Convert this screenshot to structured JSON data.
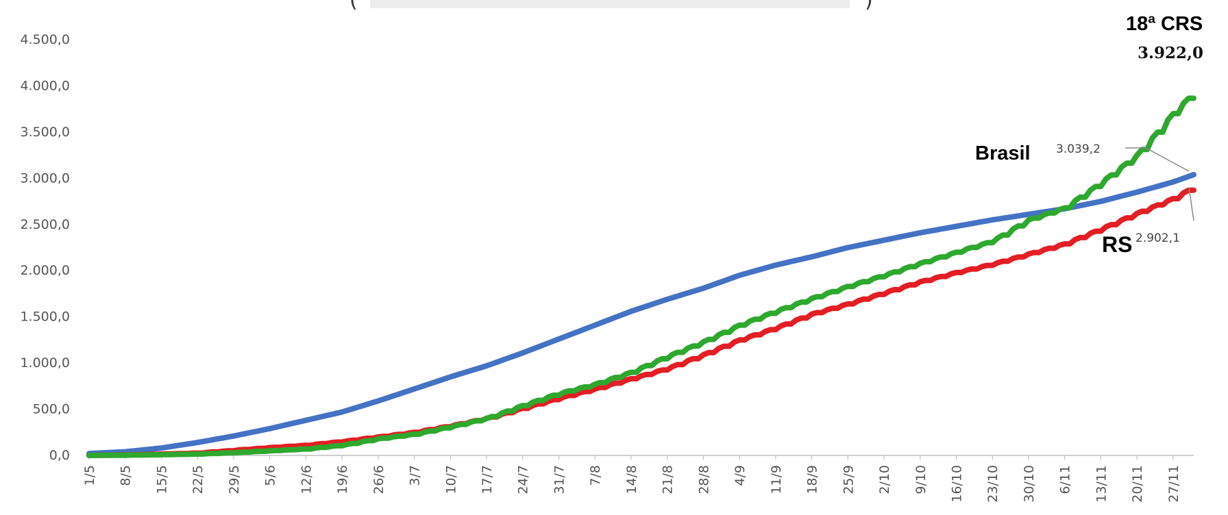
{
  "chart_data": {
    "type": "line",
    "title_fragment": "(",
    "title_fragment_end": ")",
    "ylim": [
      0,
      4500
    ],
    "y_ticks": [
      "0,0",
      "500,0",
      "1.000,0",
      "1.500,0",
      "2.000,0",
      "2.500,0",
      "3.000,0",
      "3.500,0",
      "4.000,0",
      "4.500,0"
    ],
    "x_ticks": [
      "1/5",
      "8/5",
      "15/5",
      "22/5",
      "29/5",
      "5/6",
      "12/6",
      "19/6",
      "26/6",
      "3/7",
      "10/7",
      "17/7",
      "24/7",
      "31/7",
      "7/8",
      "14/8",
      "21/8",
      "28/8",
      "4/9",
      "11/9",
      "18/9",
      "25/9",
      "2/10",
      "9/10",
      "16/10",
      "23/10",
      "30/10",
      "6/11",
      "13/11",
      "20/11",
      "27/11"
    ],
    "day_count": 215,
    "grid": false,
    "series": [
      {
        "name": "Brasil",
        "color": "#4472C4",
        "end_label": "3.039,2",
        "points": [
          [
            0,
            20
          ],
          [
            7,
            40
          ],
          [
            14,
            80
          ],
          [
            21,
            140
          ],
          [
            28,
            210
          ],
          [
            35,
            290
          ],
          [
            42,
            380
          ],
          [
            49,
            470
          ],
          [
            56,
            590
          ],
          [
            63,
            720
          ],
          [
            70,
            850
          ],
          [
            77,
            970
          ],
          [
            84,
            1110
          ],
          [
            91,
            1260
          ],
          [
            98,
            1410
          ],
          [
            105,
            1560
          ],
          [
            112,
            1690
          ],
          [
            119,
            1810
          ],
          [
            126,
            1950
          ],
          [
            133,
            2060
          ],
          [
            140,
            2150
          ],
          [
            147,
            2250
          ],
          [
            154,
            2330
          ],
          [
            161,
            2410
          ],
          [
            168,
            2480
          ],
          [
            175,
            2550
          ],
          [
            182,
            2610
          ],
          [
            189,
            2670
          ],
          [
            196,
            2750
          ],
          [
            203,
            2850
          ],
          [
            210,
            2960
          ],
          [
            214,
            3039.2
          ]
        ]
      },
      {
        "name": "RS",
        "color": "#E31E24",
        "end_label": "2.902,1",
        "points": [
          [
            0,
            0
          ],
          [
            7,
            5
          ],
          [
            14,
            15
          ],
          [
            21,
            25
          ],
          [
            28,
            55
          ],
          [
            35,
            85
          ],
          [
            42,
            110
          ],
          [
            49,
            150
          ],
          [
            56,
            200
          ],
          [
            63,
            250
          ],
          [
            70,
            320
          ],
          [
            77,
            400
          ],
          [
            84,
            510
          ],
          [
            91,
            620
          ],
          [
            98,
            720
          ],
          [
            105,
            830
          ],
          [
            112,
            940
          ],
          [
            119,
            1090
          ],
          [
            126,
            1250
          ],
          [
            133,
            1380
          ],
          [
            140,
            1530
          ],
          [
            147,
            1640
          ],
          [
            154,
            1760
          ],
          [
            161,
            1880
          ],
          [
            168,
            1980
          ],
          [
            175,
            2070
          ],
          [
            182,
            2180
          ],
          [
            189,
            2290
          ],
          [
            196,
            2450
          ],
          [
            203,
            2620
          ],
          [
            210,
            2780
          ],
          [
            214,
            2902.1
          ]
        ]
      },
      {
        "name": "18ª CRS",
        "color": "#2EA82E",
        "end_label": "3.922,0",
        "points": [
          [
            0,
            0
          ],
          [
            7,
            3
          ],
          [
            14,
            8
          ],
          [
            21,
            15
          ],
          [
            28,
            30
          ],
          [
            35,
            50
          ],
          [
            42,
            70
          ],
          [
            49,
            110
          ],
          [
            56,
            180
          ],
          [
            63,
            230
          ],
          [
            70,
            310
          ],
          [
            77,
            400
          ],
          [
            84,
            540
          ],
          [
            91,
            670
          ],
          [
            98,
            770
          ],
          [
            105,
            900
          ],
          [
            112,
            1070
          ],
          [
            119,
            1230
          ],
          [
            126,
            1410
          ],
          [
            133,
            1560
          ],
          [
            140,
            1700
          ],
          [
            147,
            1830
          ],
          [
            154,
            1950
          ],
          [
            161,
            2080
          ],
          [
            168,
            2200
          ],
          [
            175,
            2320
          ],
          [
            182,
            2550
          ],
          [
            189,
            2680
          ],
          [
            196,
            2950
          ],
          [
            203,
            3250
          ],
          [
            207,
            3500
          ],
          [
            210,
            3700
          ],
          [
            214,
            3922.0
          ]
        ]
      }
    ]
  },
  "colors": {
    "brasil": "#4472C4",
    "rs": "#E31E24",
    "crs": "#2EA82E",
    "axis": "#bfbfbf",
    "text": "#555555"
  }
}
